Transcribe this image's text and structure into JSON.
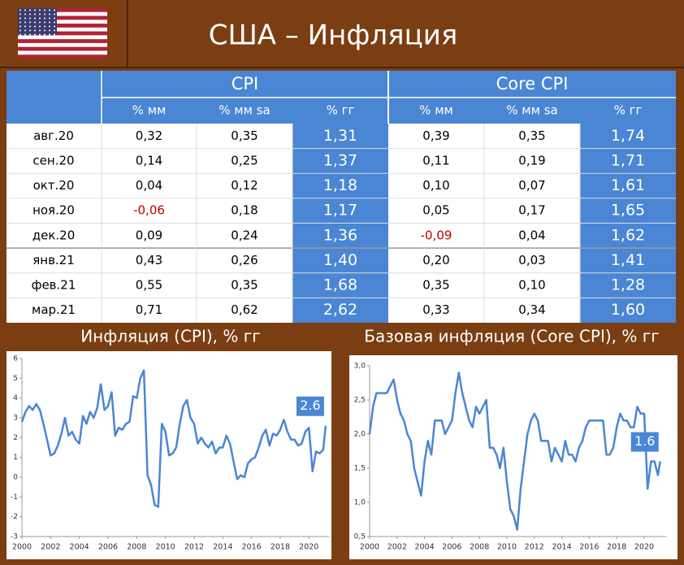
{
  "header": {
    "title": "США – Инфляция"
  },
  "table": {
    "groups": [
      "CPI",
      "Core CPI"
    ],
    "columns": [
      "% мм",
      "% мм sa",
      "% гг",
      "% мм",
      "% мм sa",
      "% гг"
    ],
    "negative_color": "#c00000",
    "highlight_color": "#4a86d4",
    "rows": [
      {
        "label": "авг.20",
        "cells": [
          "0,32",
          "0,35",
          "1,31",
          "0,39",
          "0,35",
          "1,74"
        ]
      },
      {
        "label": "сен.20",
        "cells": [
          "0,14",
          "0,25",
          "1,37",
          "0,11",
          "0,19",
          "1,71"
        ]
      },
      {
        "label": "окт.20",
        "cells": [
          "0,04",
          "0,12",
          "1,18",
          "0,10",
          "0,07",
          "1,61"
        ]
      },
      {
        "label": "ноя.20",
        "cells": [
          "-0,06",
          "0,18",
          "1,17",
          "0,05",
          "0,17",
          "1,65"
        ]
      },
      {
        "label": "дек.20",
        "cells": [
          "0,09",
          "0,24",
          "1,36",
          "-0,09",
          "0,04",
          "1,62"
        ]
      },
      {
        "label": "янв.21",
        "cells": [
          "0,43",
          "0,26",
          "1,40",
          "0,20",
          "0,03",
          "1,41"
        ]
      },
      {
        "label": "фев.21",
        "cells": [
          "0,55",
          "0,35",
          "1,68",
          "0,35",
          "0,10",
          "1,28"
        ]
      },
      {
        "label": "мар.21",
        "cells": [
          "0,71",
          "0,62",
          "2,62",
          "0,33",
          "0,34",
          "1,60"
        ]
      }
    ]
  },
  "chart_data": [
    {
      "type": "line",
      "title": "Инфляция (CPI), % гг",
      "color": "#4a86d4",
      "x": [
        2000,
        2000.25,
        2000.5,
        2000.75,
        2001,
        2001.25,
        2001.5,
        2001.75,
        2002,
        2002.25,
        2002.5,
        2002.75,
        2003,
        2003.25,
        2003.5,
        2003.75,
        2004,
        2004.25,
        2004.5,
        2004.75,
        2005,
        2005.25,
        2005.5,
        2005.75,
        2006,
        2006.25,
        2006.5,
        2006.75,
        2007,
        2007.25,
        2007.5,
        2007.75,
        2008,
        2008.25,
        2008.5,
        2008.75,
        2009,
        2009.25,
        2009.5,
        2009.75,
        2010,
        2010.25,
        2010.5,
        2010.75,
        2011,
        2011.25,
        2011.5,
        2011.75,
        2012,
        2012.25,
        2012.5,
        2012.75,
        2013,
        2013.25,
        2013.5,
        2013.75,
        2014,
        2014.25,
        2014.5,
        2014.75,
        2015,
        2015.25,
        2015.5,
        2015.75,
        2016,
        2016.25,
        2016.5,
        2016.75,
        2017,
        2017.25,
        2017.5,
        2017.75,
        2018,
        2018.25,
        2018.5,
        2018.75,
        2019,
        2019.25,
        2019.5,
        2019.75,
        2020,
        2020.25,
        2020.5,
        2020.75,
        2021,
        2021.17
      ],
      "values": [
        2.8,
        3.3,
        3.6,
        3.4,
        3.7,
        3.4,
        2.7,
        1.9,
        1.1,
        1.2,
        1.6,
        2.2,
        3.0,
        2.1,
        2.3,
        1.9,
        1.7,
        3.1,
        2.7,
        3.3,
        3.0,
        3.5,
        4.7,
        3.4,
        3.6,
        4.3,
        2.1,
        2.5,
        2.4,
        2.7,
        2.8,
        4.1,
        4.0,
        5.0,
        5.4,
        0.1,
        -0.4,
        -1.4,
        -1.5,
        2.7,
        2.3,
        1.1,
        1.2,
        1.5,
        2.7,
        3.6,
        3.9,
        3.0,
        2.7,
        1.7,
        2.0,
        1.7,
        1.5,
        1.8,
        1.2,
        1.5,
        1.5,
        2.1,
        1.7,
        0.8,
        -0.1,
        0.1,
        0.0,
        0.7,
        0.9,
        1.0,
        1.5,
        2.1,
        2.4,
        1.6,
        2.2,
        2.1,
        2.4,
        2.9,
        2.3,
        1.9,
        1.9,
        1.6,
        1.7,
        2.3,
        2.5,
        0.3,
        1.3,
        1.2,
        1.4,
        2.6
      ],
      "xlim": [
        2000,
        2021.4
      ],
      "xticks": [
        2000,
        2002,
        2004,
        2006,
        2008,
        2010,
        2012,
        2014,
        2016,
        2018,
        2020
      ],
      "ylim": [
        -3,
        6
      ],
      "yticks": [
        -3,
        -2,
        -1,
        0,
        1,
        2,
        3,
        4,
        5,
        6
      ]
    },
    {
      "type": "line",
      "title": "Базовая инфляция (Core CPI), % гг",
      "color": "#4a86d4",
      "x": [
        2000,
        2000.25,
        2000.5,
        2000.75,
        2001,
        2001.25,
        2001.5,
        2001.75,
        2002,
        2002.25,
        2002.5,
        2002.75,
        2003,
        2003.25,
        2003.5,
        2003.75,
        2004,
        2004.25,
        2004.5,
        2004.75,
        2005,
        2005.25,
        2005.5,
        2005.75,
        2006,
        2006.25,
        2006.5,
        2006.75,
        2007,
        2007.25,
        2007.5,
        2007.75,
        2008,
        2008.25,
        2008.5,
        2008.75,
        2009,
        2009.25,
        2009.5,
        2009.75,
        2010,
        2010.25,
        2010.5,
        2010.75,
        2011,
        2011.25,
        2011.5,
        2011.75,
        2012,
        2012.25,
        2012.5,
        2012.75,
        2013,
        2013.25,
        2013.5,
        2013.75,
        2014,
        2014.25,
        2014.5,
        2014.75,
        2015,
        2015.25,
        2015.5,
        2015.75,
        2016,
        2016.25,
        2016.5,
        2016.75,
        2017,
        2017.25,
        2017.5,
        2017.75,
        2018,
        2018.25,
        2018.5,
        2018.75,
        2019,
        2019.25,
        2019.5,
        2019.75,
        2020,
        2020.25,
        2020.5,
        2020.75,
        2021,
        2021.17
      ],
      "values": [
        2.0,
        2.4,
        2.6,
        2.6,
        2.6,
        2.6,
        2.7,
        2.8,
        2.5,
        2.3,
        2.2,
        2.0,
        1.9,
        1.5,
        1.3,
        1.1,
        1.6,
        1.9,
        1.7,
        2.2,
        2.2,
        2.2,
        2.0,
        2.1,
        2.2,
        2.6,
        2.9,
        2.6,
        2.4,
        2.2,
        2.1,
        2.4,
        2.3,
        2.4,
        2.5,
        1.8,
        1.8,
        1.7,
        1.5,
        1.8,
        1.3,
        0.9,
        0.8,
        0.6,
        1.2,
        1.6,
        2.0,
        2.2,
        2.3,
        2.2,
        1.9,
        1.9,
        1.9,
        1.6,
        1.8,
        1.7,
        1.6,
        1.9,
        1.7,
        1.7,
        1.6,
        1.8,
        1.9,
        2.1,
        2.2,
        2.2,
        2.2,
        2.2,
        2.2,
        1.7,
        1.7,
        1.8,
        2.1,
        2.3,
        2.2,
        2.2,
        2.1,
        2.1,
        2.4,
        2.3,
        2.3,
        1.2,
        1.6,
        1.6,
        1.4,
        1.6
      ],
      "xlim": [
        2000,
        2021.6
      ],
      "xticks": [
        2000,
        2002,
        2004,
        2006,
        2008,
        2010,
        2012,
        2014,
        2016,
        2018,
        2020
      ],
      "ylim": [
        0.5,
        3.0
      ],
      "yticks": [
        {
          "value": 0.5,
          "label": "0,5"
        },
        {
          "value": 1.0,
          "label": "1,0"
        },
        {
          "value": 1.5,
          "label": "1,5"
        },
        {
          "value": 2.0,
          "label": "2,0"
        },
        {
          "value": 2.5,
          "label": "2,5"
        },
        {
          "value": 3.0,
          "label": "3,0"
        }
      ]
    }
  ]
}
